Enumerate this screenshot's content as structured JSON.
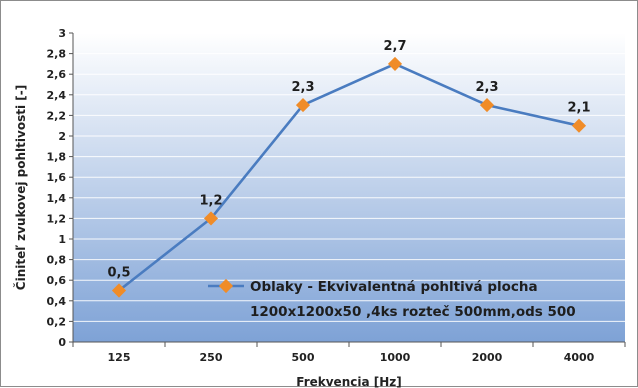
{
  "chart_data": {
    "type": "line",
    "categories": [
      "125",
      "250",
      "500",
      "1000",
      "2000",
      "4000"
    ],
    "series": [
      {
        "name_lines": [
          "Oblaky - Ekvivalentná pohltivá plocha",
          "1200x1200x50 ,4ks rozteč 500mm,ods 500"
        ],
        "values": [
          0.5,
          1.2,
          2.3,
          2.7,
          2.3,
          2.1
        ],
        "data_labels": [
          "0,5",
          "1,2",
          "2,3",
          "2,7",
          "2,3",
          "2,1"
        ],
        "line_color": "#4a7cc0",
        "marker_color": "#f08c28"
      }
    ],
    "xlabel": "Frekvencia [Hz]",
    "ylabel": "Činiteľ zvukovej pohltivosti [-]",
    "ylim": [
      0,
      3
    ],
    "yticks": [
      "0",
      "0,2",
      "0,4",
      "0,6",
      "0,8",
      "1",
      "1,2",
      "1,4",
      "1,6",
      "1,8",
      "2",
      "2,2",
      "2,4",
      "2,6",
      "2,8",
      "3"
    ],
    "grid": true,
    "legend_position": "bottom-right",
    "plot_gradient": [
      "#ffffff",
      "#7ea2d6"
    ]
  }
}
